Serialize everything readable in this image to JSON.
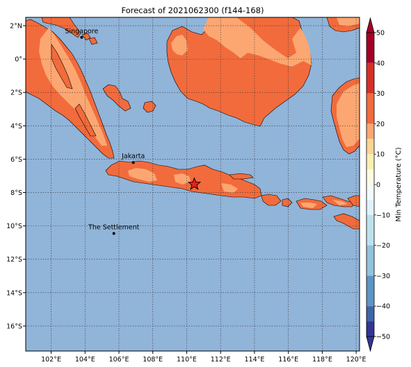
{
  "title": "Forecast of 2021062300 (f144-168)",
  "map": {
    "lon_range": [
      100.5,
      120.2
    ],
    "lat_range": [
      -17.5,
      2.5
    ],
    "lon_ticks": [
      "102°E",
      "104°E",
      "106°E",
      "108°E",
      "110°E",
      "112°E",
      "114°E",
      "116°E",
      "118°E",
      "120°E"
    ],
    "lon_tick_values": [
      102,
      104,
      106,
      108,
      110,
      112,
      114,
      116,
      118,
      120
    ],
    "lat_ticks": [
      "2°N",
      "0°",
      "2°S",
      "4°S",
      "6°S",
      "8°S",
      "10°S",
      "12°S",
      "14°S",
      "16°S"
    ],
    "lat_tick_values": [
      2,
      0,
      -2,
      -4,
      -6,
      -8,
      -10,
      -12,
      -14,
      -16
    ],
    "gridlines": true,
    "ocean_color": "#91b4d9",
    "land_color_warm": "#f26b3c",
    "land_color_mild": "#fca772",
    "cities": [
      {
        "name": "Singapore",
        "lon": 103.8,
        "lat": 1.3
      },
      {
        "name": "Jakarta",
        "lon": 106.85,
        "lat": -6.2
      },
      {
        "name": "The Settlement",
        "lon": 105.7,
        "lat": -10.45
      }
    ],
    "marker": {
      "icon": "star-icon",
      "lon": 110.45,
      "lat": -7.5,
      "color": "#e8201e"
    }
  },
  "colorbar": {
    "label": "Min Temperature (°C)",
    "ticks": [
      "50",
      "40",
      "30",
      "20",
      "10",
      "0",
      "−10",
      "−20",
      "−30",
      "−40",
      "−50"
    ],
    "bands": [
      {
        "from": 40,
        "to": 50,
        "color": "#a50026"
      },
      {
        "from": 30,
        "to": 40,
        "color": "#d62f27"
      },
      {
        "from": 25,
        "to": 30,
        "color": "#f26b3c"
      },
      {
        "from": 20,
        "to": 25,
        "color": "#f26b3c"
      },
      {
        "from": 15,
        "to": 20,
        "color": "#fca772"
      },
      {
        "from": 10,
        "to": 15,
        "color": "#fdd493"
      },
      {
        "from": 5,
        "to": 10,
        "color": "#feefb0"
      },
      {
        "from": 0,
        "to": 5,
        "color": "#fffbe0"
      },
      {
        "from": -5,
        "to": 0,
        "color": "#f2fbfd"
      },
      {
        "from": -10,
        "to": -5,
        "color": "#e0f3f8"
      },
      {
        "from": -20,
        "to": -10,
        "color": "#bde2ee"
      },
      {
        "from": -30,
        "to": -20,
        "color": "#91c3dd"
      },
      {
        "from": -40,
        "to": -30,
        "color": "#5d95c4"
      },
      {
        "from": -45,
        "to": -40,
        "color": "#3d65a8"
      },
      {
        "from": -50,
        "to": -45,
        "color": "#313695"
      }
    ]
  }
}
